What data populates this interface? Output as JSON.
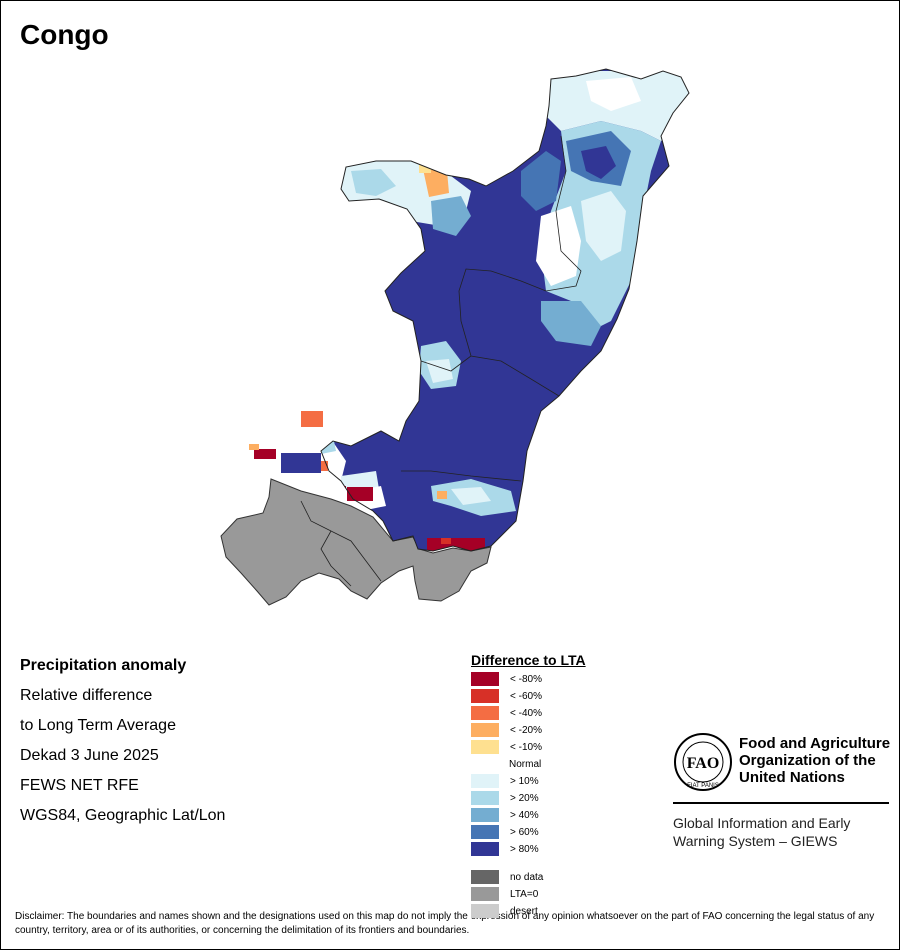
{
  "title": "Congo",
  "info": {
    "heading": "Precipitation anomaly",
    "lines": [
      "Relative difference",
      "to Long Term Average",
      "Dekad 3 June 2025",
      "FEWS NET RFE",
      "WGS84, Geographic Lat/Lon"
    ]
  },
  "legend": {
    "title": "Difference to LTA",
    "items": [
      {
        "label": "< -80%",
        "color": "#a50026"
      },
      {
        "label": "< -60%",
        "color": "#d73027"
      },
      {
        "label": "< -40%",
        "color": "#f46d43"
      },
      {
        "label": "< -20%",
        "color": "#fdae61"
      },
      {
        "label": "< -10%",
        "color": "#fee090"
      }
    ],
    "normal_label": "Normal",
    "wet_items": [
      {
        "label": "> 10%",
        "color": "#e0f3f8"
      },
      {
        "label": "> 20%",
        "color": "#abd9e9"
      },
      {
        "label": "> 40%",
        "color": "#74add1"
      },
      {
        "label": "> 60%",
        "color": "#4575b4"
      },
      {
        "label": "> 80%",
        "color": "#313695"
      }
    ],
    "other_items": [
      {
        "label": "no data",
        "color": "#666666"
      },
      {
        "label": "LTA=0",
        "color": "#999999"
      },
      {
        "label": "desert",
        "color": "#cccccc"
      }
    ]
  },
  "fao": {
    "logo_ring_text": "FIAT PANIS",
    "logo_center": "FAO",
    "name_lines": [
      "Food and Agriculture",
      "Organization of the",
      "United Nations"
    ]
  },
  "giews": {
    "lines": [
      "Global Information and Early",
      "Warning System – GIEWS"
    ]
  },
  "disclaimer": "Disclaimer: The boundaries and names shown and the designations used on this map do not imply the expression of any opinion whatsoever on the part of FAO concerning the legal status of any country, territory, area or of its authorities, or concerning the delimitation of its frontiers and boundaries."
}
